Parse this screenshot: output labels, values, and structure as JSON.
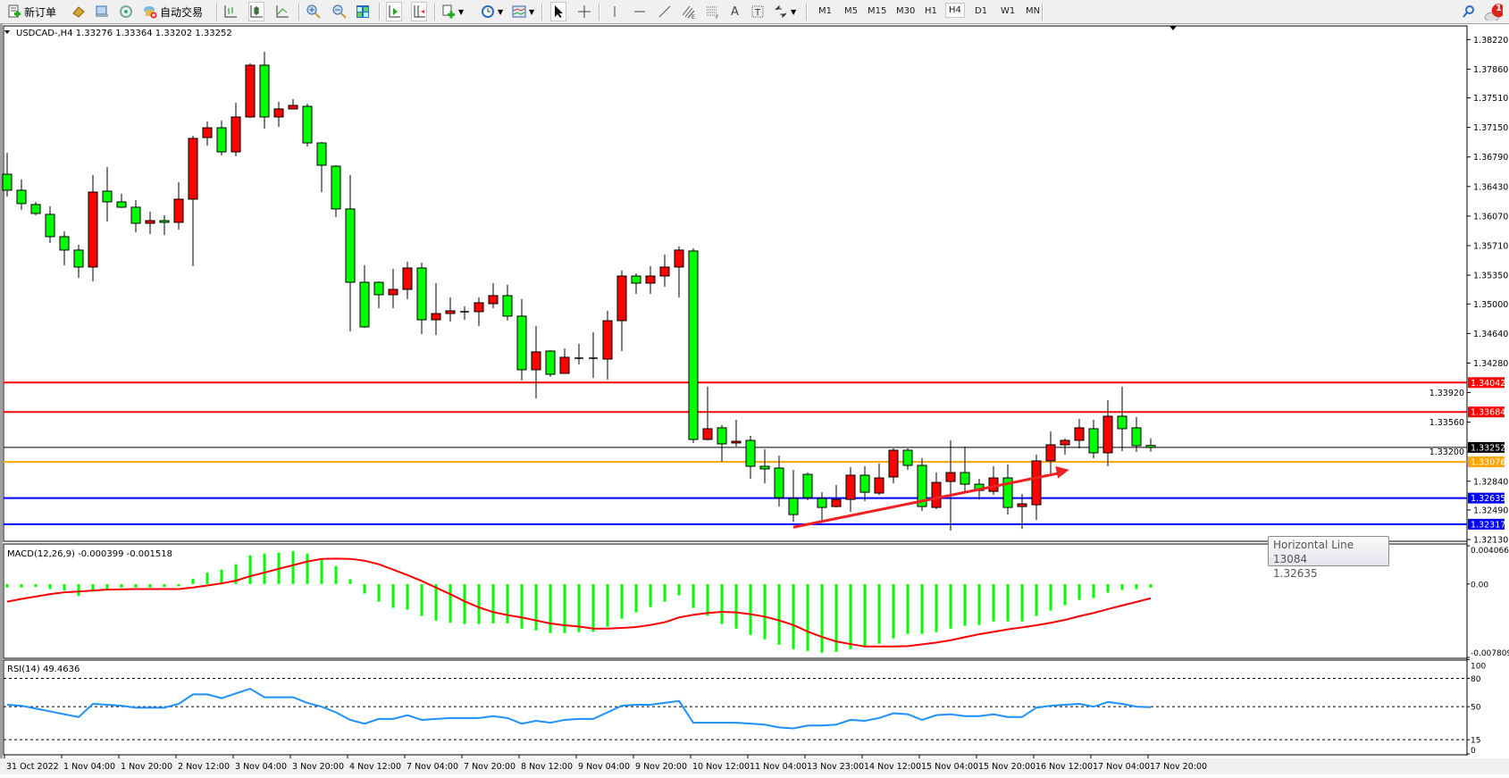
{
  "toolbar": {
    "new_order_label": "新订单",
    "auto_trade_label": "自动交易",
    "timeframes": [
      "M1",
      "M5",
      "M15",
      "M30",
      "H1",
      "H4",
      "D1",
      "W1",
      "MN"
    ],
    "selected_timeframe": "H4",
    "notification_count": "1",
    "icons": [
      "new-order-icon",
      "market-watch-icon",
      "data-window-icon",
      "signals-icon",
      "auto-trading-icon",
      "bar-chart-icon",
      "candlestick-icon",
      "line-chart-icon",
      "zoom-in-icon",
      "zoom-out-icon",
      "tile-windows-icon",
      "auto-scroll-icon",
      "chart-shift-icon",
      "indicators-icon",
      "periods-icon",
      "templates-icon",
      "cursor-icon",
      "crosshair-icon",
      "vertical-line-icon",
      "horizontal-line-icon",
      "trendline-icon",
      "equidistant-channel-icon",
      "fibonacci-icon",
      "text-icon",
      "text-label-icon",
      "arrows-icon",
      "search-icon",
      "notification-icon"
    ]
  },
  "chart": {
    "header": "USDCAD-,H4  1.33276 1.33364 1.33202 1.33252",
    "symbol": "USDCAD-",
    "period": "H4",
    "colors": {
      "up": "#ff0000",
      "down": "#00ff00",
      "bid_line": "#000000",
      "macd_hist": "#00ff00",
      "macd_signal": "#ff0000",
      "rsi": "#1e90ff"
    },
    "price_axis": [
      "1.38220",
      "1.37860",
      "1.37510",
      "1.37150",
      "1.36790",
      "1.36430",
      "1.36070",
      "1.35710",
      "1.35350",
      "1.35000",
      "1.34640",
      "1.34280",
      "1.33920",
      "1.33560",
      "1.33200",
      "1.32840",
      "1.32490",
      "1.32130"
    ],
    "horizontal_lines": [
      {
        "price": "1.34042",
        "color": "#ff0000"
      },
      {
        "price": "1.33684",
        "color": "#ff0000"
      },
      {
        "price": "1.33252",
        "color": "#000000"
      },
      {
        "price": "1.33076",
        "color": "#ffa500"
      },
      {
        "price": "1.32635",
        "color": "#0000ff"
      },
      {
        "price": "1.32317",
        "color": "#0000ff"
      }
    ],
    "arrow": {
      "from": [
        55,
        1.3228
      ],
      "to": [
        74.3,
        1.3298
      ],
      "color": "#ee2222"
    },
    "tooltip": {
      "title": "Horizontal Line 13084",
      "value": "1.32635"
    },
    "time_axis": [
      "31 Oct 2022",
      "1 Nov 04:00",
      "1 Nov 20:00",
      "2 Nov 12:00",
      "3 Nov 04:00",
      "3 Nov 20:00",
      "4 Nov 12:00",
      "7 Nov 04:00",
      "7 Nov 20:00",
      "8 Nov 12:00",
      "9 Nov 04:00",
      "9 Nov 20:00",
      "10 Nov 12:00",
      "11 Nov 04:00",
      "13 Nov 23:00",
      "14 Nov 12:00",
      "15 Nov 04:00",
      "15 Nov 20:00",
      "16 Nov 12:00",
      "17 Nov 04:00",
      "17 Nov 20:00"
    ]
  },
  "chart_data": [
    {
      "type": "candlestick",
      "title": "USDCAD-,H4",
      "ylim": [
        1.3213,
        1.3822
      ],
      "ohlc": [
        [
          1.3658,
          1.36842,
          1.36308,
          1.36385
        ],
        [
          1.36385,
          1.36516,
          1.36146,
          1.36222
        ],
        [
          1.36211,
          1.36243,
          1.3608,
          1.36102
        ],
        [
          1.36091,
          1.36189,
          1.35743,
          1.35819
        ],
        [
          1.35819,
          1.35884,
          1.35471,
          1.35656
        ],
        [
          1.35656,
          1.35722,
          1.35318,
          1.35449
        ],
        [
          1.35449,
          1.3657,
          1.35275,
          1.36363
        ],
        [
          1.36374,
          1.36668,
          1.36004,
          1.36243
        ],
        [
          1.36243,
          1.36341,
          1.36168,
          1.36178
        ],
        [
          1.36178,
          1.36265,
          1.35873,
          1.35982
        ],
        [
          1.35982,
          1.36123,
          1.35852,
          1.36015
        ],
        [
          1.36015,
          1.3608,
          1.35841,
          1.35993
        ],
        [
          1.35993,
          1.36483,
          1.35906,
          1.36276
        ],
        [
          1.36276,
          1.37048,
          1.3546,
          1.37016
        ],
        [
          1.37026,
          1.37222,
          1.36929,
          1.37146
        ],
        [
          1.37146,
          1.37233,
          1.36809,
          1.36852
        ],
        [
          1.36852,
          1.37451,
          1.36798,
          1.37277
        ],
        [
          1.37277,
          1.3793,
          1.37266,
          1.37908
        ],
        [
          1.37908,
          1.38071,
          1.37135,
          1.37277
        ],
        [
          1.37277,
          1.37462,
          1.37157,
          1.37375
        ],
        [
          1.37375,
          1.37494,
          1.37375,
          1.37418
        ],
        [
          1.37407,
          1.3744,
          1.36918,
          1.36961
        ],
        [
          1.36961,
          1.36972,
          1.36363,
          1.36689
        ],
        [
          1.36678,
          1.36689,
          1.36058,
          1.36157
        ],
        [
          1.36157,
          1.3657,
          1.34666,
          1.35264
        ],
        [
          1.35264,
          1.35471,
          1.34709,
          1.3472
        ],
        [
          1.35264,
          1.35275,
          1.34949,
          1.35112
        ],
        [
          1.35112,
          1.35427,
          1.34949,
          1.35177
        ],
        [
          1.35177,
          1.35514,
          1.35058,
          1.35438
        ],
        [
          1.35438,
          1.35503,
          1.34633,
          1.34807
        ],
        [
          1.34807,
          1.35253,
          1.34622,
          1.34883
        ],
        [
          1.34883,
          1.35079,
          1.34785,
          1.34916
        ],
        [
          1.34905,
          1.3497,
          1.34807,
          1.34905
        ],
        [
          1.34905,
          1.35079,
          1.34731,
          1.35014
        ],
        [
          1.35003,
          1.35253,
          1.34949,
          1.35101
        ],
        [
          1.35101,
          1.35232,
          1.34796,
          1.34851
        ],
        [
          1.34851,
          1.35058,
          1.34067,
          1.34198
        ],
        [
          1.34198,
          1.34731,
          1.3385,
          1.34416
        ],
        [
          1.34426,
          1.34437,
          1.3411,
          1.34143
        ],
        [
          1.34154,
          1.34459,
          1.34154,
          1.3435
        ],
        [
          1.34339,
          1.34513,
          1.34263,
          1.34339
        ],
        [
          1.34339,
          1.34655,
          1.34099,
          1.34339
        ],
        [
          1.34328,
          1.34916,
          1.34078,
          1.34796
        ],
        [
          1.34796,
          1.35406,
          1.34426,
          1.3534
        ],
        [
          1.3534,
          1.35373,
          1.35123,
          1.35253
        ],
        [
          1.35253,
          1.3546,
          1.35123,
          1.3534
        ],
        [
          1.3534,
          1.35601,
          1.3521,
          1.35449
        ],
        [
          1.35449,
          1.357,
          1.35079,
          1.35656
        ],
        [
          1.35645,
          1.35678,
          1.33306,
          1.33349
        ],
        [
          1.33349,
          1.33991,
          1.33338,
          1.3348
        ],
        [
          1.33491,
          1.33524,
          1.33077,
          1.33295
        ],
        [
          1.33306,
          1.33589,
          1.33262,
          1.33327
        ],
        [
          1.33338,
          1.33393,
          1.3287,
          1.33022
        ],
        [
          1.33022,
          1.33229,
          1.32815,
          1.3299
        ],
        [
          1.33001,
          1.33153,
          1.32532,
          1.32641
        ],
        [
          1.3263,
          1.32979,
          1.32347,
          1.32434
        ],
        [
          1.32924,
          1.32946,
          1.32609,
          1.32641
        ],
        [
          1.3263,
          1.32706,
          1.32369,
          1.32521
        ],
        [
          1.32532,
          1.32794,
          1.32521,
          1.32619
        ],
        [
          1.32619,
          1.33012,
          1.32467,
          1.32914
        ],
        [
          1.32914,
          1.33022,
          1.32598,
          1.32706
        ],
        [
          1.32696,
          1.33055,
          1.32674,
          1.32881
        ],
        [
          1.32892,
          1.3324,
          1.32815,
          1.33218
        ],
        [
          1.33218,
          1.3324,
          1.32979,
          1.33033
        ],
        [
          1.33033,
          1.3312,
          1.32478,
          1.32532
        ],
        [
          1.32521,
          1.32946,
          1.325,
          1.32826
        ],
        [
          1.32837,
          1.33338,
          1.32238,
          1.32946
        ],
        [
          1.32946,
          1.33262,
          1.32706,
          1.32804
        ],
        [
          1.32804,
          1.3287,
          1.32619,
          1.32728
        ],
        [
          1.32717,
          1.33022,
          1.32674,
          1.32881
        ],
        [
          1.32881,
          1.33044,
          1.32434,
          1.32521
        ],
        [
          1.32532,
          1.32685,
          1.3226,
          1.32565
        ],
        [
          1.32554,
          1.33164,
          1.32369,
          1.33088
        ],
        [
          1.33088,
          1.33447,
          1.32924,
          1.33284
        ],
        [
          1.33284,
          1.3336,
          1.33164,
          1.33338
        ],
        [
          1.33338,
          1.336,
          1.3324,
          1.33491
        ],
        [
          1.3348,
          1.33589,
          1.3312,
          1.33186
        ],
        [
          1.33186,
          1.33828,
          1.33022,
          1.33632
        ],
        [
          1.33632,
          1.33991,
          1.33207,
          1.3348
        ],
        [
          1.33491,
          1.33622,
          1.33197,
          1.33273
        ],
        [
          1.33276,
          1.33364,
          1.33202,
          1.33252
        ]
      ]
    },
    {
      "type": "bar+line",
      "title": "MACD(12,26,9) -0.000399 -0.001518",
      "ylim": [
        -0.007809,
        0.004066
      ],
      "ticks": [
        "0.004066",
        "0.00",
        "-0.007809"
      ],
      "histogram": [
        -0.00038,
        -0.00038,
        -0.00032,
        -0.00054,
        -0.0007,
        -0.00127,
        -0.0007,
        -0.00054,
        -0.00038,
        -0.00038,
        -0.00038,
        -0.00032,
        -0.00025,
        0.00057,
        0.00121,
        0.00153,
        0.0021,
        0.00305,
        0.00324,
        0.00334,
        0.0035,
        0.00324,
        0.00273,
        0.00191,
        0.00051,
        -0.00102,
        -0.00188,
        -0.00254,
        -0.00273,
        -0.0034,
        -0.00388,
        -0.0041,
        -0.00426,
        -0.00426,
        -0.0042,
        -0.0042,
        -0.00474,
        -0.00493,
        -0.00522,
        -0.00522,
        -0.00512,
        -0.00509,
        -0.00455,
        -0.00369,
        -0.00302,
        -0.00245,
        -0.00188,
        -0.00121,
        -0.00254,
        -0.00337,
        -0.00426,
        -0.00474,
        -0.00541,
        -0.00588,
        -0.00646,
        -0.00693,
        -0.00712,
        -0.00731,
        -0.00722,
        -0.00693,
        -0.00674,
        -0.00636,
        -0.00579,
        -0.00531,
        -0.00531,
        -0.00512,
        -0.00474,
        -0.00445,
        -0.00436,
        -0.00398,
        -0.00398,
        -0.00398,
        -0.0034,
        -0.00283,
        -0.00226,
        -0.00169,
        -0.0015,
        -0.00092,
        -0.00064,
        -0.00054,
        -0.000399
      ],
      "signal": [
        -0.00188,
        -0.00159,
        -0.00134,
        -0.00108,
        -0.00089,
        -0.0008,
        -0.0007,
        -0.0006,
        -0.00057,
        -0.00054,
        -0.00054,
        -0.00054,
        -0.00054,
        -0.00038,
        -0.00016,
        6e-05,
        0.00035,
        0.00083,
        0.00121,
        0.00162,
        0.002,
        0.00239,
        0.00267,
        0.0027,
        0.00267,
        0.00248,
        0.0021,
        0.00153,
        0.00095,
        0.00032,
        -0.00038,
        -0.00108,
        -0.00184,
        -0.00248,
        -0.00299,
        -0.00331,
        -0.00356,
        -0.00388,
        -0.0042,
        -0.00439,
        -0.00452,
        -0.00474,
        -0.00474,
        -0.00467,
        -0.00458,
        -0.00436,
        -0.00407,
        -0.00356,
        -0.00328,
        -0.00308,
        -0.00296,
        -0.00302,
        -0.00321,
        -0.00347,
        -0.00388,
        -0.00436,
        -0.00506,
        -0.00563,
        -0.00611,
        -0.00639,
        -0.00665,
        -0.00665,
        -0.00665,
        -0.00661,
        -0.00642,
        -0.00623,
        -0.00598,
        -0.00566,
        -0.00534,
        -0.00509,
        -0.00483,
        -0.00461,
        -0.00439,
        -0.00413,
        -0.00382,
        -0.00343,
        -0.00308,
        -0.00267,
        -0.00229,
        -0.00191,
        -0.001518
      ]
    },
    {
      "type": "line",
      "title": "RSI(14) 49.4636",
      "ylim": [
        0,
        100
      ],
      "ticks": [
        "100",
        "80",
        "50",
        "15",
        "0"
      ],
      "levels": [
        80,
        50,
        15
      ],
      "values": [
        52,
        51,
        48,
        45,
        42,
        39,
        53,
        52,
        51,
        49,
        49,
        49,
        53,
        63,
        63,
        59,
        64,
        69,
        60,
        60,
        60,
        54,
        50,
        44,
        36,
        32,
        37,
        37,
        41,
        36,
        37,
        38,
        38,
        38,
        40,
        38,
        32,
        35,
        33,
        36,
        37,
        37,
        44,
        51,
        52,
        52,
        54,
        56,
        33,
        33,
        33,
        33,
        32,
        31,
        28,
        27,
        30,
        30,
        31,
        36,
        35,
        38,
        43,
        42,
        36,
        41,
        42,
        40,
        40,
        42,
        39,
        39,
        49,
        51,
        52,
        53,
        50,
        55,
        53,
        50,
        49.4636
      ]
    }
  ]
}
